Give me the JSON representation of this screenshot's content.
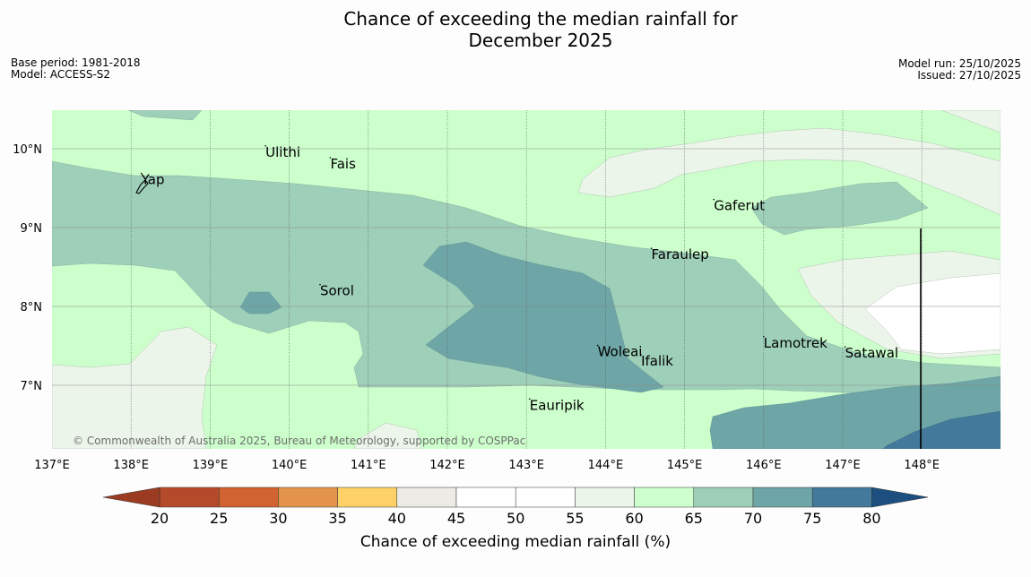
{
  "title_line1": "Chance of exceeding the median rainfall for",
  "title_line2": "December 2025",
  "meta_left": [
    "Base period: 1981-2018",
    "Model: ACCESS-S2"
  ],
  "meta_right": [
    "Model run: 25/10/2025",
    "Issued: 27/10/2025"
  ],
  "copyright": "© Commonwealth of Australia 2025, Bureau of Meteorology, supported by COSPPac",
  "map": {
    "lon_range": [
      137,
      149
    ],
    "lat_range": [
      6.2,
      10.5
    ],
    "lon_ticks": [
      "137°E",
      "138°E",
      "139°E",
      "140°E",
      "141°E",
      "142°E",
      "143°E",
      "144°E",
      "145°E",
      "146°E",
      "147°E",
      "148°E"
    ],
    "lat_ticks": [
      "10°N",
      "9°N",
      "8°N",
      "7°N"
    ],
    "places": [
      {
        "name": "Ulithi",
        "lon": 139.7,
        "lat": 9.9
      },
      {
        "name": "Fais",
        "lon": 140.52,
        "lat": 9.75
      },
      {
        "name": "Yap",
        "lon": 138.13,
        "lat": 9.55
      },
      {
        "name": "Gaferut",
        "lon": 145.37,
        "lat": 9.22
      },
      {
        "name": "Faraulep",
        "lon": 144.58,
        "lat": 8.6
      },
      {
        "name": "Sorol",
        "lon": 140.39,
        "lat": 8.14
      },
      {
        "name": "Lamotrek",
        "lon": 146.0,
        "lat": 7.48
      },
      {
        "name": "Satawal",
        "lon": 147.03,
        "lat": 7.35
      },
      {
        "name": "Woleai",
        "lon": 143.9,
        "lat": 7.37
      },
      {
        "name": "Ifalik",
        "lon": 144.45,
        "lat": 7.25
      },
      {
        "name": "Eauripik",
        "lon": 143.04,
        "lat": 6.69
      }
    ]
  },
  "colorbar": {
    "title": "Chance of exceeding median rainfall (%)",
    "ticks": [
      "20",
      "25",
      "30",
      "35",
      "40",
      "45",
      "50",
      "55",
      "60",
      "65",
      "70",
      "75",
      "80"
    ],
    "colors": [
      "#b54a2b",
      "#d0632f",
      "#e3944a",
      "#fdd068",
      "#ecebe6",
      "#ffffff",
      "#ffffff",
      "#ecf5ea",
      "#ccffcc",
      "#9ecfb9",
      "#6ea5a6",
      "#437a9b"
    ],
    "under_color": "#9b3b22",
    "over_color": "#1c4f80"
  }
}
